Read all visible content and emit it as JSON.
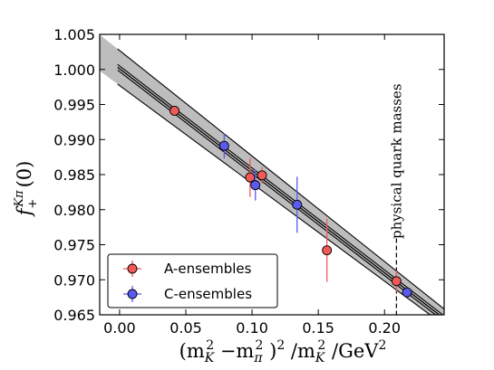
{
  "chart_data": {
    "type": "scatter",
    "xlabel_parts": [
      "(m",
      "K",
      "2",
      " −m",
      "π",
      "2",
      " )",
      "2",
      " /m",
      "K",
      "2",
      " /GeV",
      "2"
    ],
    "ylabel_parts": [
      "f",
      "+",
      "Kπ",
      "(0)"
    ],
    "xlim": [
      -0.015,
      0.245
    ],
    "ylim": [
      0.965,
      1.005
    ],
    "xticks": [
      0.0,
      0.05,
      0.1,
      0.15,
      0.2
    ],
    "xtick_labels": [
      "0.00",
      "0.05",
      "0.10",
      "0.15",
      "0.20"
    ],
    "yticks": [
      0.965,
      0.97,
      0.975,
      0.98,
      0.985,
      0.99,
      0.995,
      1.0,
      1.005
    ],
    "ytick_labels": [
      "0.965",
      "0.970",
      "0.975",
      "0.980",
      "0.985",
      "0.990",
      "0.995",
      "1.000",
      "1.005"
    ],
    "fit": {
      "center": {
        "intercept": 1.0001,
        "slope": -0.1455
      },
      "band_upper": {
        "intercept": 1.0027,
        "slope": -0.1505
      },
      "band_lower": {
        "intercept": 0.9977,
        "slope": -0.1395
      },
      "inner_upper": {
        "intercept": 1.0005,
        "slope": -0.1455
      },
      "inner_lower": {
        "intercept": 0.9997,
        "slope": -0.1455
      },
      "colors": {
        "band": "#bdbdbd",
        "line": "#000000"
      }
    },
    "series": [
      {
        "name": "A-ensembles",
        "color": "#f05a5a",
        "points": [
          {
            "x": 0.0415,
            "y": 0.9941,
            "yerr": 0.0004
          },
          {
            "x": 0.0985,
            "y": 0.9846,
            "yerr": 0.0028
          },
          {
            "x": 0.1075,
            "y": 0.9849,
            "yerr": 0.0012
          },
          {
            "x": 0.1565,
            "y": 0.9742,
            "yerr": 0.0045
          },
          {
            "x": 0.209,
            "y": 0.9698,
            "yerr": 0.0015
          }
        ]
      },
      {
        "name": "C-ensembles",
        "color": "#5a5af0",
        "points": [
          {
            "x": 0.079,
            "y": 0.9891,
            "yerr": 0.0018
          },
          {
            "x": 0.1025,
            "y": 0.9835,
            "yerr": 0.0022
          },
          {
            "x": 0.134,
            "y": 0.9807,
            "yerr": 0.004
          },
          {
            "x": 0.217,
            "y": 0.9682,
            "yerr": 0.0007
          }
        ]
      }
    ],
    "physical_point_x": 0.209,
    "annotation": "physical quark masses",
    "legend": {
      "position": "lower-left",
      "entries": [
        "A-ensembles",
        "C-ensembles"
      ]
    }
  }
}
